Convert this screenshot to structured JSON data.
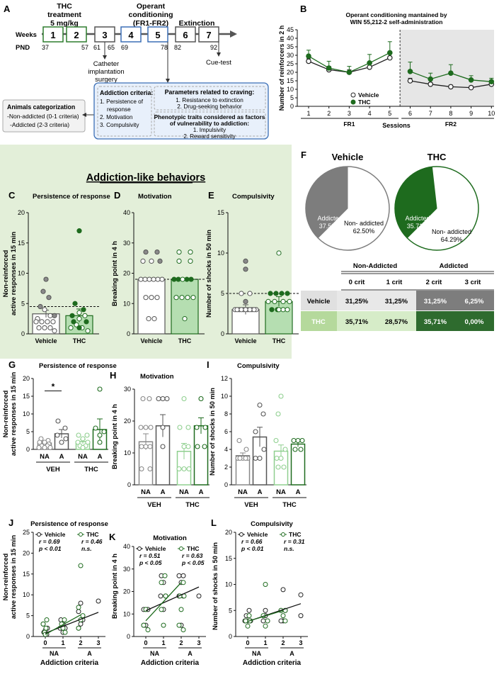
{
  "panel_letters": {
    "A": "A",
    "B": "B",
    "C": "C",
    "D": "D",
    "E": "E",
    "F": "F",
    "G": "G",
    "H": "H",
    "I": "I",
    "J": "J",
    "K": "K",
    "L": "L"
  },
  "colors": {
    "thc": "#1e6b1e",
    "thc_light": "#8fcf8f",
    "vehicle_fill": "#ffffff",
    "grey": "#888888",
    "green_bg": "#e3efd9",
    "blue_bg": "#e8f0fb",
    "blue_border": "#3b6fb6",
    "shade": "#e6e6e6",
    "veh_row": "#7d7d7d",
    "thc_light_cell": "#b5d99c",
    "thc_dark_cell": "#2e6b2e",
    "veh_light_cell": "#e8e8e8"
  },
  "panel_a": {
    "thc_label_1": "THC",
    "thc_label_2": "treatment",
    "thc_label_3": "5 mg/kg",
    "operant_label_1": "Operant",
    "operant_label_2": "conditioning",
    "operant_label_3": "(FR1-FR2)",
    "extinction_label": "Extinction",
    "weeks_label": "Weeks",
    "pnd_label": "PND",
    "weeks": [
      "1",
      "2",
      "3",
      "4",
      "5",
      "6",
      "7"
    ],
    "pnd": [
      "37",
      "57",
      "61",
      "65",
      "69",
      "78",
      "82",
      "92"
    ],
    "catheter_1": "Catheter",
    "catheter_2": "implantation",
    "catheter_3": "surgery",
    "cue_test": "Cue-test",
    "categ_1": "Animals categorization",
    "categ_2": "-Non-addicted (0-1 criteria)",
    "categ_3": "-Addicted (2-3 criteria)",
    "addiction_title": "Addiction criteria:",
    "addiction_items": [
      "1. Persistence of",
      "response",
      "2. Motivation",
      "3. Compulsivity"
    ],
    "craving_title": "Parameters related to craving:",
    "craving_items": [
      "1. Resistance to extinction",
      "2. Drug-seeking behavior"
    ],
    "pheno_title_1": "Phenotypic traits considered as factors",
    "pheno_title_2": "of vulnerability to addiction:",
    "pheno_items": [
      "1. Impulsivity",
      "2. Reward sensitivity"
    ]
  },
  "addiction_like_title": "Addiction-like behaviors",
  "pie_table": {
    "vehicle_title": "Vehicle",
    "thc_title": "THC",
    "addicted_label": "Addicted",
    "non_addicted_label": "Non- addicted",
    "vehicle_addicted_pct": "37.50%",
    "vehicle_non_addicted_pct": "62.50%",
    "thc_addicted_pct": "35.71%",
    "thc_non_addicted_pct": "64.29%",
    "group_headers": [
      "Non-Addicted",
      "Addicted"
    ],
    "col_headers": [
      "0 crit",
      "1 crit",
      "2 crit",
      "3 crit"
    ],
    "rows": [
      {
        "label": "Vehicle",
        "values": [
          "31,25%",
          "31,25%",
          "31,25%",
          "6,25%"
        ]
      },
      {
        "label": "THC",
        "values": [
          "35,71%",
          "28,57%",
          "35,71%",
          "0,00%"
        ]
      }
    ]
  },
  "chart_data": [
    {
      "id": "B",
      "type": "line",
      "title": "Operant conditioning mantained by",
      "subtitle": "WIN 55,212-2 self-administration",
      "xlabel": "Sessions",
      "ylabel": "Number of reinforcers in 2 h",
      "x": [
        1,
        2,
        3,
        4,
        5,
        6,
        7,
        8,
        9,
        10
      ],
      "ylim": [
        0,
        45
      ],
      "yticks": [
        0,
        5,
        10,
        15,
        20,
        25,
        30,
        35,
        40,
        45
      ],
      "phase_labels": [
        "FR1",
        "FR2"
      ],
      "legend": [
        "Vehicle",
        "THC"
      ],
      "series": [
        {
          "name": "Vehicle",
          "values": [
            26.5,
            21.5,
            20,
            23,
            28.5,
            15,
            13,
            11.5,
            11,
            13
          ],
          "errors": [
            1.5,
            2,
            1.5,
            2,
            3,
            1.5,
            1,
            1,
            1,
            1
          ]
        },
        {
          "name": "THC",
          "values": [
            29.5,
            22.5,
            20,
            25.5,
            31.5,
            20.5,
            16,
            19.5,
            15.5,
            14.5
          ],
          "errors": [
            3.5,
            4,
            3.5,
            5,
            6.5,
            5.5,
            3.5,
            5,
            2.5,
            2
          ]
        }
      ]
    },
    {
      "id": "C",
      "type": "bar",
      "title": "Persistence of response",
      "ylabel": "Non-reinforced active responses in 15 min",
      "categories": [
        "Vehicle",
        "THC"
      ],
      "ylim": [
        0,
        20
      ],
      "yticks": [
        0,
        5,
        10,
        15,
        20
      ],
      "threshold": 4.5,
      "values": [
        3.3,
        3
      ],
      "errors": [
        0.6,
        1.1
      ]
    },
    {
      "id": "D",
      "type": "bar",
      "title": "Motivation",
      "ylabel": "Breaking point in 4 h",
      "categories": [
        "Vehicle",
        "THC"
      ],
      "ylim": [
        0,
        40
      ],
      "yticks": [
        0,
        10,
        20,
        30,
        40
      ],
      "threshold": 18,
      "values": [
        18,
        18
      ],
      "errors": [
        0,
        0
      ]
    },
    {
      "id": "E",
      "type": "bar",
      "title": "Compulsivity",
      "ylabel": "Number of shocks in 50 min",
      "categories": [
        "Vehicle",
        "THC"
      ],
      "ylim": [
        0,
        15
      ],
      "yticks": [
        0,
        5,
        10,
        15
      ],
      "threshold": 5,
      "values": [
        3,
        4
      ],
      "errors": [
        0.6,
        0.6
      ]
    },
    {
      "id": "G",
      "type": "bar",
      "title": "Persistence of response",
      "ylabel": "Non-reinforced active responses in 15 min",
      "categories": [
        "NA",
        "A",
        "NA",
        "A"
      ],
      "groups": [
        "VEH",
        "THC"
      ],
      "ylim": [
        0,
        20
      ],
      "yticks": [
        0,
        5,
        10,
        15,
        20
      ],
      "values": [
        1.8,
        4.4,
        2.2,
        5.6
      ],
      "errors": [
        0.4,
        1.2,
        0.6,
        3.0
      ],
      "significance": "*"
    },
    {
      "id": "H",
      "type": "bar",
      "title": "Motivation",
      "ylabel": "Breaking point in 4 h",
      "categories": [
        "NA",
        "A",
        "NA",
        "A"
      ],
      "groups": [
        "VEH",
        "THC"
      ],
      "ylim": [
        0,
        30
      ],
      "yticks": [
        0,
        10,
        20,
        30
      ],
      "values": [
        13.5,
        18.5,
        10.5,
        18.5
      ],
      "errors": [
        2.5,
        3.5,
        2.5,
        2.5
      ]
    },
    {
      "id": "I",
      "type": "bar",
      "title": "Compulsivity",
      "ylabel": "Number of shocks in 50 min",
      "categories": [
        "NA",
        "A",
        "NA",
        "A"
      ],
      "groups": [
        "VEH",
        "THC"
      ],
      "ylim": [
        0,
        12
      ],
      "yticks": [
        0,
        2,
        4,
        6,
        8,
        10,
        12
      ],
      "values": [
        3.3,
        5.4,
        3.8,
        4.6
      ],
      "errors": [
        0.3,
        1.1,
        0.7,
        0.3
      ]
    },
    {
      "id": "J",
      "type": "scatter",
      "title": "Persistence of response",
      "ylabel": "Non-reinforced active responses in 15 min",
      "xlabel": "Addiction criteria",
      "x_ticks": [
        "0",
        "1",
        "2",
        "3"
      ],
      "x_groups": [
        "NA",
        "A"
      ],
      "ylim": [
        0,
        25
      ],
      "yticks": [
        0,
        5,
        10,
        15,
        20,
        25
      ],
      "legend": [
        "Vehicle",
        "THC"
      ],
      "stats": {
        "vehicle_r": "r = 0.69",
        "vehicle_p": "p < 0.01",
        "thc_r": "r = 0.46",
        "thc_p": "n.s."
      },
      "regression": {
        "vehicle": [
          0.8,
          5.8
        ],
        "thc": [
          0.5,
          5.2
        ]
      }
    },
    {
      "id": "K",
      "type": "scatter",
      "title": "Motivation",
      "ylabel": "Breaking point in 4 h",
      "xlabel": "Addiction criteria",
      "x_ticks": [
        "0",
        "1",
        "2",
        "3"
      ],
      "x_groups": [
        "NA",
        "A"
      ],
      "ylim": [
        0,
        40
      ],
      "yticks": [
        0,
        10,
        20,
        30,
        40
      ],
      "legend": [
        "Vehicle",
        "THC"
      ],
      "stats": {
        "vehicle_r": "r = 0.51",
        "vehicle_p": "p < 0.05",
        "thc_r": "r = 0.63",
        "thc_p": "p < 0.05"
      },
      "regression": {
        "vehicle": [
          11.5,
          22
        ],
        "thc": [
          7,
          24
        ]
      }
    },
    {
      "id": "L",
      "type": "scatter",
      "title": "Compulsivity",
      "ylabel": "Number of shocks in 50 min",
      "xlabel": "Addiction criteria",
      "x_ticks": [
        "0",
        "1",
        "2",
        "3"
      ],
      "x_groups": [
        "NA",
        "A"
      ],
      "ylim": [
        0,
        20
      ],
      "yticks": [
        0,
        5,
        10,
        15,
        20
      ],
      "legend": [
        "Vehicle",
        "THC"
      ],
      "stats": {
        "vehicle_r": "r = 0.66",
        "vehicle_p": "p < 0.01",
        "thc_r": "r = 0.31",
        "thc_p": "n.s."
      },
      "regression": {
        "vehicle": [
          2.9,
          6.3
        ],
        "thc": [
          2.9,
          5
        ]
      }
    }
  ]
}
